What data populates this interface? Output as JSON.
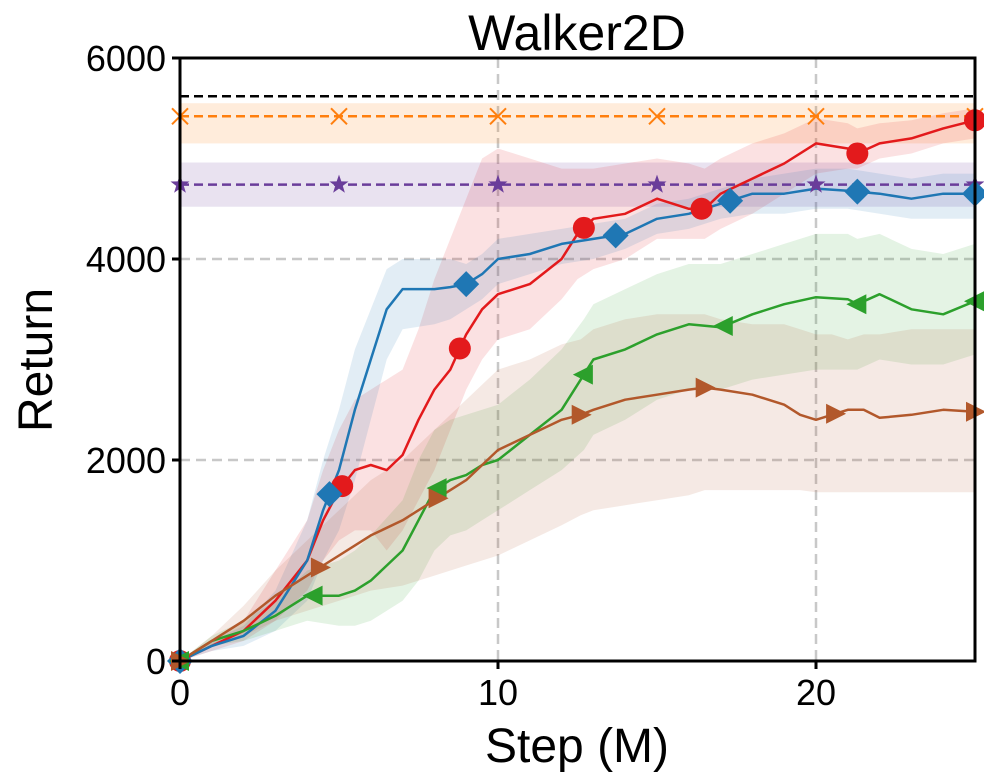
{
  "chart_data": {
    "type": "line",
    "title": "Walker2D",
    "xlabel": "Step (M)",
    "ylabel": "Return",
    "xlim": [
      0,
      25
    ],
    "ylim": [
      0,
      6000
    ],
    "xticks": [
      0,
      10,
      20
    ],
    "yticks": [
      0,
      2000,
      4000,
      6000
    ],
    "xtick_labels": [
      "0",
      "10",
      "20"
    ],
    "ytick_labels": [
      "0",
      "2000",
      "4000",
      "6000"
    ],
    "grid": true,
    "reference_lines": [
      {
        "name": "black-dashed",
        "color": "#000000",
        "value": 5620,
        "marker": "none",
        "band": null,
        "marker_x": []
      },
      {
        "name": "orange-dashed",
        "color": "#ff7f0e",
        "value": 5420,
        "marker": "x",
        "band": [
          5150,
          5550
        ],
        "marker_x": [
          0,
          5,
          10,
          15,
          20,
          25
        ]
      },
      {
        "name": "purple-dashed",
        "color": "#6a3d9a",
        "value": 4740,
        "marker": "star",
        "band": [
          4520,
          4960
        ],
        "marker_x": [
          0,
          5,
          10,
          15,
          20,
          25
        ]
      }
    ],
    "series": [
      {
        "name": "red",
        "color": "#e31a1c",
        "marker": "circle",
        "x": [
          0,
          1,
          2,
          3,
          4,
          4.5,
          5,
          5.5,
          6,
          6.5,
          7,
          7.5,
          8,
          8.5,
          9,
          9.5,
          10,
          11,
          12,
          12.5,
          13,
          14,
          15,
          16,
          16.5,
          17,
          18,
          19,
          20,
          21,
          21.3,
          22,
          23,
          24,
          25
        ],
        "y": [
          0,
          150,
          300,
          600,
          1000,
          1400,
          1700,
          1900,
          1950,
          1900,
          2050,
          2400,
          2700,
          2900,
          3250,
          3500,
          3650,
          3750,
          4000,
          4250,
          4400,
          4450,
          4600,
          4500,
          4500,
          4650,
          4800,
          4950,
          5150,
          5100,
          5050,
          5150,
          5200,
          5300,
          5380
        ],
        "lower": [
          0,
          100,
          200,
          400,
          700,
          1000,
          1200,
          1300,
          1300,
          1100,
          1300,
          1600,
          1900,
          2300,
          2700,
          3000,
          3200,
          3300,
          3600,
          3800,
          3900,
          4000,
          4200,
          4200,
          4200,
          4300,
          4450,
          4650,
          4850,
          4900,
          4900,
          5000,
          5050,
          5150,
          5200
        ],
        "upper": [
          0,
          200,
          400,
          900,
          1400,
          1900,
          2300,
          2600,
          2700,
          2800,
          2900,
          3300,
          3800,
          4200,
          4600,
          5000,
          5100,
          5000,
          4900,
          4900,
          4900,
          4950,
          5000,
          4950,
          4900,
          5000,
          5150,
          5250,
          5400,
          5350,
          5300,
          5350,
          5380,
          5450,
          5500
        ],
        "marker_x": [
          0,
          5.1,
          8.8,
          12.7,
          16.4,
          21.3,
          25
        ]
      },
      {
        "name": "blue",
        "color": "#1f77b4",
        "marker": "diamond",
        "x": [
          0,
          1,
          2,
          3,
          4,
          4.5,
          5,
          5.5,
          6,
          6.5,
          7,
          8,
          8.5,
          9,
          9.5,
          10,
          11,
          12,
          13,
          14,
          15,
          16,
          17,
          18,
          19,
          20,
          21,
          22,
          23,
          24,
          25
        ],
        "y": [
          0,
          150,
          250,
          500,
          1000,
          1500,
          1900,
          2500,
          3000,
          3500,
          3700,
          3700,
          3720,
          3750,
          3850,
          4000,
          4050,
          4150,
          4200,
          4250,
          4400,
          4450,
          4550,
          4650,
          4650,
          4700,
          4680,
          4650,
          4600,
          4650,
          4650
        ],
        "lower": [
          0,
          100,
          150,
          300,
          600,
          1000,
          1300,
          1800,
          2400,
          3000,
          3300,
          3350,
          3400,
          3500,
          3600,
          3750,
          3850,
          3950,
          4000,
          4100,
          4250,
          4300,
          4400,
          4450,
          4450,
          4500,
          4500,
          4450,
          4400,
          4400,
          4400
        ],
        "upper": [
          0,
          200,
          350,
          700,
          1400,
          2000,
          2500,
          3100,
          3500,
          3900,
          4000,
          4000,
          4000,
          3950,
          4050,
          4200,
          4250,
          4300,
          4350,
          4400,
          4550,
          4600,
          4700,
          4800,
          4850,
          4900,
          4900,
          4850,
          4800,
          4850,
          4850
        ],
        "marker_x": [
          0,
          4.7,
          9.0,
          13.7,
          17.3,
          21.3,
          25
        ]
      },
      {
        "name": "green",
        "color": "#2ca02c",
        "marker": "triangle-left",
        "x": [
          0,
          1,
          2,
          3,
          3.5,
          4,
          5,
          5.5,
          6,
          7,
          7.5,
          8,
          8.5,
          9,
          9.5,
          10,
          11,
          12,
          12.7,
          13,
          14,
          15,
          16,
          17,
          18,
          19,
          20,
          21,
          21.3,
          22,
          23,
          24,
          25
        ],
        "y": [
          0,
          200,
          300,
          450,
          550,
          650,
          650,
          700,
          800,
          1100,
          1400,
          1700,
          1800,
          1850,
          1950,
          2000,
          2250,
          2500,
          2850,
          3000,
          3100,
          3250,
          3350,
          3320,
          3450,
          3550,
          3620,
          3600,
          3550,
          3650,
          3500,
          3450,
          3580
        ],
        "lower": [
          0,
          150,
          200,
          300,
          350,
          400,
          350,
          350,
          400,
          600,
          800,
          1100,
          1250,
          1300,
          1400,
          1500,
          1700,
          1900,
          2100,
          2250,
          2400,
          2600,
          2700,
          2700,
          2800,
          2850,
          2900,
          2900,
          2900,
          3000,
          2950,
          2950,
          3050
        ],
        "upper": [
          0,
          250,
          400,
          600,
          750,
          900,
          1000,
          1100,
          1250,
          1600,
          2000,
          2300,
          2400,
          2450,
          2500,
          2550,
          2800,
          3100,
          3400,
          3550,
          3700,
          3850,
          3950,
          3950,
          4050,
          4150,
          4250,
          4250,
          4200,
          4250,
          4100,
          4050,
          4150
        ],
        "marker_x": [
          0,
          4.2,
          8.1,
          12.7,
          17.1,
          21.3,
          25
        ]
      },
      {
        "name": "brown",
        "color": "#b2582b",
        "marker": "triangle-right",
        "x": [
          0,
          1,
          2,
          3,
          4,
          4.5,
          5,
          6,
          7,
          8,
          9,
          10,
          11,
          12,
          12.6,
          13,
          14,
          15,
          16,
          16.5,
          17,
          18,
          19,
          19.5,
          20,
          20.5,
          21,
          21.5,
          22,
          23,
          24,
          25
        ],
        "y": [
          0,
          200,
          400,
          650,
          850,
          950,
          1050,
          1250,
          1400,
          1600,
          1800,
          2100,
          2250,
          2400,
          2450,
          2500,
          2600,
          2650,
          2700,
          2720,
          2700,
          2650,
          2550,
          2450,
          2400,
          2450,
          2500,
          2500,
          2420,
          2450,
          2500,
          2480
        ],
        "lower": [
          0,
          150,
          250,
          400,
          500,
          550,
          600,
          700,
          750,
          850,
          950,
          1050,
          1200,
          1350,
          1450,
          1500,
          1550,
          1600,
          1650,
          1700,
          1700,
          1700,
          1700,
          1700,
          1680,
          1680,
          1680,
          1680,
          1680,
          1680,
          1680,
          1680
        ],
        "upper": [
          0,
          250,
          550,
          900,
          1200,
          1350,
          1500,
          1800,
          2000,
          2300,
          2600,
          2900,
          3000,
          3150,
          3200,
          3300,
          3400,
          3450,
          3450,
          3450,
          3400,
          3350,
          3350,
          3300,
          3250,
          3250,
          3200,
          3250,
          3250,
          3300,
          3300,
          3300
        ],
        "marker_x": [
          0,
          4.4,
          8.1,
          12.6,
          16.5,
          20.6,
          25
        ]
      }
    ]
  }
}
